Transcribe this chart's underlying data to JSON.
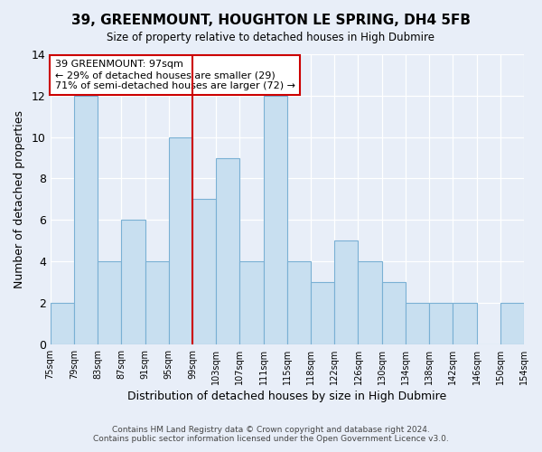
{
  "title": "39, GREENMOUNT, HOUGHTON LE SPRING, DH4 5FB",
  "subtitle": "Size of property relative to detached houses in High Dubmire",
  "xlabel": "Distribution of detached houses by size in High Dubmire",
  "ylabel": "Number of detached properties",
  "bar_labels": [
    "75sqm",
    "79sqm",
    "83sqm",
    "87sqm",
    "91sqm",
    "95sqm",
    "99sqm",
    "103sqm",
    "107sqm",
    "111sqm",
    "115sqm",
    "118sqm",
    "122sqm",
    "126sqm",
    "130sqm",
    "134sqm",
    "138sqm",
    "142sqm",
    "146sqm",
    "150sqm",
    "154sqm"
  ],
  "bar_values": [
    2,
    12,
    4,
    6,
    4,
    10,
    7,
    9,
    4,
    12,
    4,
    3,
    5,
    4,
    3,
    2,
    2,
    2,
    0,
    2
  ],
  "bar_color": "#c8dff0",
  "bar_edge_color": "#7ab0d4",
  "vline_color": "#cc0000",
  "annotation_title": "39 GREENMOUNT: 97sqm",
  "annotation_line1": "← 29% of detached houses are smaller (29)",
  "annotation_line2": "71% of semi-detached houses are larger (72) →",
  "annotation_box_facecolor": "#ffffff",
  "annotation_box_edgecolor": "#cc0000",
  "ylim": [
    0,
    14
  ],
  "yticks": [
    0,
    2,
    4,
    6,
    8,
    10,
    12,
    14
  ],
  "bg_color": "#e8eef8",
  "grid_color": "#ffffff",
  "footer1": "Contains HM Land Registry data © Crown copyright and database right 2024.",
  "footer2": "Contains public sector information licensed under the Open Government Licence v3.0."
}
